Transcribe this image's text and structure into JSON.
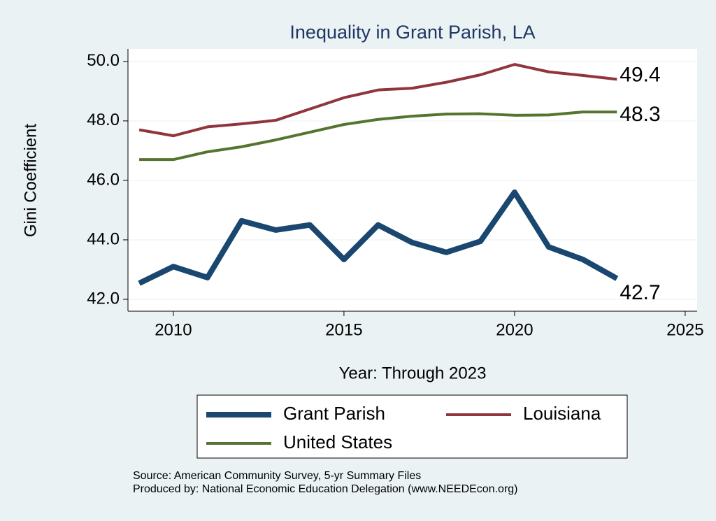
{
  "chart_data": {
    "type": "line",
    "title": "Inequality in Grant Parish, LA",
    "x_label": "Year: Through 2023",
    "y_label": "Gini Coefficient",
    "x": [
      2009,
      2010,
      2011,
      2012,
      2013,
      2014,
      2015,
      2016,
      2017,
      2018,
      2019,
      2020,
      2021,
      2022,
      2023
    ],
    "series": [
      {
        "name": "Grant Parish",
        "color": "#1a476f",
        "values": [
          42.54,
          43.1,
          42.73,
          44.64,
          44.33,
          44.5,
          43.34,
          44.5,
          43.91,
          43.58,
          43.95,
          45.6,
          43.76,
          43.34,
          42.7
        ]
      },
      {
        "name": "Louisiana",
        "color": "#90353b",
        "values": [
          47.7,
          47.5,
          47.8,
          47.9,
          48.02,
          48.4,
          48.78,
          49.04,
          49.1,
          49.3,
          49.55,
          49.9,
          49.65,
          49.53,
          49.4
        ]
      },
      {
        "name": "United States",
        "color": "#55752f",
        "values": [
          46.7,
          46.7,
          46.96,
          47.13,
          47.36,
          47.62,
          47.88,
          48.05,
          48.16,
          48.23,
          48.24,
          48.19,
          48.2,
          48.3,
          48.3
        ]
      }
    ],
    "xlim": [
      2008.67,
      2025.35
    ],
    "xticks": [
      2010,
      2015,
      2020,
      2025
    ],
    "ylim": [
      41.6,
      50.42
    ],
    "yticks": [
      {
        "value": 42,
        "label": "42.0"
      },
      {
        "value": 44,
        "label": "44.0"
      },
      {
        "value": 46,
        "label": "46.0"
      },
      {
        "value": 48,
        "label": "48.0"
      },
      {
        "value": 50,
        "label": "50.0"
      }
    ],
    "grid": true,
    "notes": [
      "Source: American Community Survey, 5-yr Summary Files",
      "Produced by: National Economic Education Delegation (www.NEEDEcon.org)"
    ]
  }
}
